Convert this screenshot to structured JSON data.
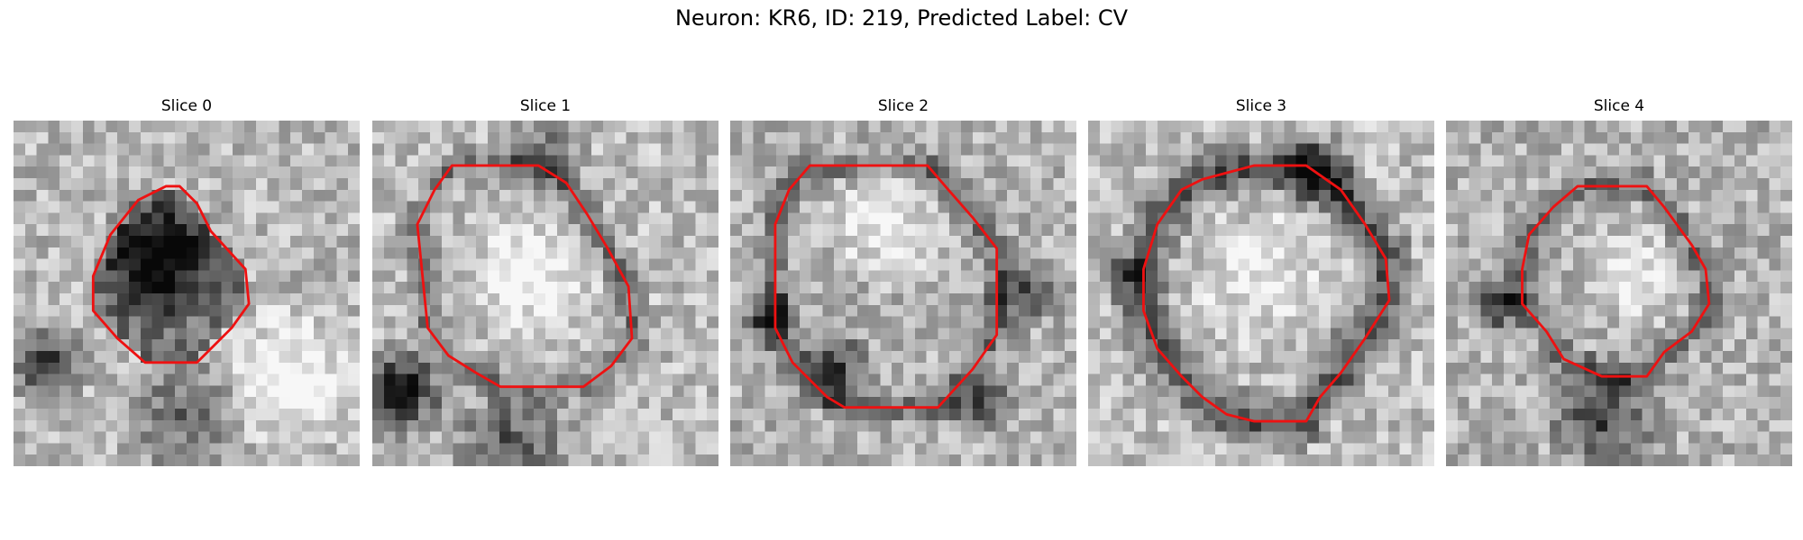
{
  "figure": {
    "title": "Neuron: KR6, ID: 219, Predicted Label: CV"
  },
  "colors": {
    "contour": "#ee1111",
    "background": "#ffffff",
    "colormap": "gray"
  },
  "panels": [
    {
      "title": "Slice 0",
      "seed": 11,
      "brightness": 0.72,
      "dark_center": true,
      "dark_regions": [
        [
          0.42,
          0.4,
          0.2,
          0.6
        ],
        [
          0.1,
          0.7,
          0.14,
          0.6
        ],
        [
          0.5,
          0.85,
          0.22,
          0.35
        ]
      ],
      "light_regions": [
        [
          0.8,
          0.75,
          0.25,
          0.35
        ]
      ],
      "contour": [
        [
          0.44,
          0.19
        ],
        [
          0.36,
          0.23
        ],
        [
          0.28,
          0.33
        ],
        [
          0.23,
          0.45
        ],
        [
          0.23,
          0.55
        ],
        [
          0.3,
          0.63
        ],
        [
          0.38,
          0.7
        ],
        [
          0.53,
          0.7
        ],
        [
          0.63,
          0.6
        ],
        [
          0.68,
          0.53
        ],
        [
          0.67,
          0.43
        ],
        [
          0.57,
          0.32
        ],
        [
          0.53,
          0.24
        ],
        [
          0.48,
          0.19
        ]
      ]
    },
    {
      "title": "Slice 1",
      "seed": 23,
      "brightness": 0.74,
      "dark_center": false,
      "dark_regions": [
        [
          0.08,
          0.78,
          0.16,
          0.75
        ],
        [
          0.5,
          0.1,
          0.14,
          0.4
        ],
        [
          0.4,
          0.95,
          0.22,
          0.45
        ]
      ],
      "light_regions": [
        [
          0.45,
          0.45,
          0.22,
          0.3
        ]
      ],
      "contour": [
        [
          0.23,
          0.13
        ],
        [
          0.18,
          0.2
        ],
        [
          0.13,
          0.3
        ],
        [
          0.16,
          0.6
        ],
        [
          0.22,
          0.68
        ],
        [
          0.3,
          0.73
        ],
        [
          0.37,
          0.77
        ],
        [
          0.45,
          0.77
        ],
        [
          0.61,
          0.77
        ],
        [
          0.69,
          0.71
        ],
        [
          0.75,
          0.63
        ],
        [
          0.74,
          0.48
        ],
        [
          0.68,
          0.37
        ],
        [
          0.62,
          0.27
        ],
        [
          0.56,
          0.18
        ],
        [
          0.48,
          0.13
        ]
      ]
    },
    {
      "title": "Slice 2",
      "seed": 37,
      "brightness": 0.7,
      "dark_center": false,
      "dark_regions": [
        [
          0.12,
          0.57,
          0.1,
          0.6
        ],
        [
          0.3,
          0.72,
          0.14,
          0.5
        ],
        [
          0.72,
          0.82,
          0.12,
          0.5
        ],
        [
          0.85,
          0.5,
          0.12,
          0.45
        ]
      ],
      "light_regions": [
        [
          0.45,
          0.3,
          0.2,
          0.3
        ]
      ],
      "contour": [
        [
          0.23,
          0.13
        ],
        [
          0.17,
          0.2
        ],
        [
          0.13,
          0.3
        ],
        [
          0.13,
          0.6
        ],
        [
          0.18,
          0.7
        ],
        [
          0.28,
          0.8
        ],
        [
          0.33,
          0.83
        ],
        [
          0.45,
          0.83
        ],
        [
          0.6,
          0.83
        ],
        [
          0.7,
          0.72
        ],
        [
          0.77,
          0.62
        ],
        [
          0.77,
          0.37
        ],
        [
          0.7,
          0.28
        ],
        [
          0.63,
          0.2
        ],
        [
          0.57,
          0.13
        ],
        [
          0.5,
          0.13
        ]
      ]
    },
    {
      "title": "Slice 3",
      "seed": 51,
      "brightness": 0.74,
      "dark_center": false,
      "ring": true,
      "dark_regions": [
        [
          0.65,
          0.15,
          0.14,
          0.5
        ],
        [
          0.12,
          0.45,
          0.08,
          0.4
        ]
      ],
      "light_regions": [
        [
          0.5,
          0.45,
          0.25,
          0.2
        ]
      ],
      "contour": [
        [
          0.33,
          0.17
        ],
        [
          0.27,
          0.2
        ],
        [
          0.2,
          0.3
        ],
        [
          0.16,
          0.43
        ],
        [
          0.16,
          0.55
        ],
        [
          0.2,
          0.66
        ],
        [
          0.27,
          0.74
        ],
        [
          0.33,
          0.8
        ],
        [
          0.4,
          0.85
        ],
        [
          0.48,
          0.87
        ],
        [
          0.63,
          0.87
        ],
        [
          0.67,
          0.8
        ],
        [
          0.73,
          0.73
        ],
        [
          0.8,
          0.63
        ],
        [
          0.87,
          0.52
        ],
        [
          0.86,
          0.4
        ],
        [
          0.8,
          0.3
        ],
        [
          0.73,
          0.2
        ],
        [
          0.63,
          0.13
        ],
        [
          0.48,
          0.13
        ]
      ]
    },
    {
      "title": "Slice 4",
      "seed": 67,
      "brightness": 0.7,
      "dark_center": false,
      "dark_regions": [
        [
          0.15,
          0.53,
          0.1,
          0.6
        ],
        [
          0.45,
          0.85,
          0.2,
          0.5
        ]
      ],
      "light_regions": [
        [
          0.55,
          0.45,
          0.18,
          0.3
        ]
      ],
      "contour": [
        [
          0.38,
          0.19
        ],
        [
          0.31,
          0.25
        ],
        [
          0.24,
          0.33
        ],
        [
          0.22,
          0.43
        ],
        [
          0.22,
          0.53
        ],
        [
          0.29,
          0.61
        ],
        [
          0.34,
          0.69
        ],
        [
          0.45,
          0.74
        ],
        [
          0.58,
          0.74
        ],
        [
          0.63,
          0.67
        ],
        [
          0.71,
          0.61
        ],
        [
          0.76,
          0.53
        ],
        [
          0.75,
          0.43
        ],
        [
          0.71,
          0.36
        ],
        [
          0.63,
          0.25
        ],
        [
          0.58,
          0.19
        ],
        [
          0.53,
          0.19
        ]
      ]
    }
  ]
}
